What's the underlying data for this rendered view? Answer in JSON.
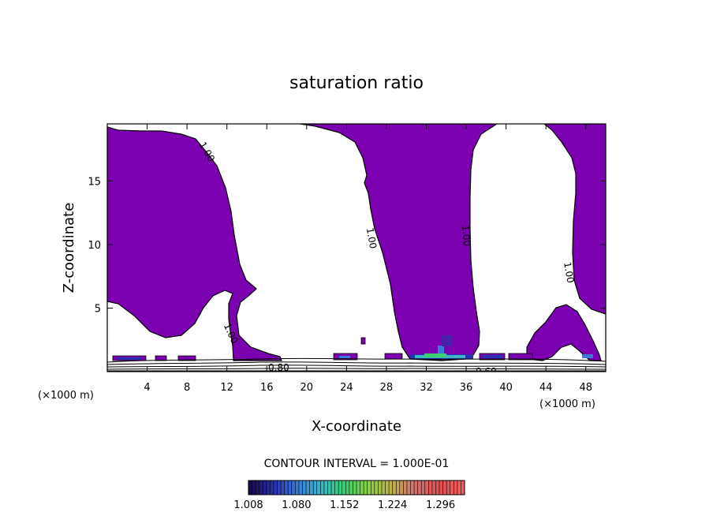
{
  "chart_data": {
    "type": "heatmap",
    "title": "saturation ratio",
    "xlabel": "X-coordinate",
    "ylabel": "Z-coordinate",
    "x_unit": "(×1000 m)",
    "x_unit_right": "(×1000 m)",
    "xlim": [
      0,
      50
    ],
    "ylim": [
      0,
      19.5
    ],
    "x_ticks": [
      4,
      8,
      12,
      16,
      20,
      24,
      28,
      32,
      36,
      40,
      44,
      48
    ],
    "y_ticks": [
      5,
      10,
      15
    ],
    "fill_threshold": 1.0,
    "fill_color": "#7b00b0",
    "contour_labels": [
      {
        "text": "1.00",
        "x": 10.0,
        "y": 17.3,
        "angle": 60
      },
      {
        "text": "1.00",
        "x": 26.5,
        "y": 10.5,
        "angle": 80
      },
      {
        "text": "1.00",
        "x": 36.0,
        "y": 10.7,
        "angle": 85
      },
      {
        "text": "1.00",
        "x": 46.3,
        "y": 7.8,
        "angle": 80
      },
      {
        "text": "1.00",
        "x": 12.4,
        "y": 3.0,
        "angle": 65
      },
      {
        "text": "0.80",
        "x": 17.2,
        "y": 0.3,
        "angle": 0
      },
      {
        "text": "0.60",
        "x": 38.0,
        "y": 0.0,
        "angle": 0
      }
    ],
    "contour_interval_label": "CONTOUR INTERVAL = 1.000E-01",
    "colorbar": {
      "min": 1.008,
      "max": 1.332,
      "tick_labels": [
        "1.008",
        "1.080",
        "1.152",
        "1.224",
        "1.296"
      ],
      "colors": [
        "#1a0a4a",
        "#2a30b0",
        "#3a7ad8",
        "#3ab8c8",
        "#3ad070",
        "#8ad040",
        "#c0b050",
        "#d07070",
        "#e05050",
        "#f06060"
      ]
    }
  }
}
